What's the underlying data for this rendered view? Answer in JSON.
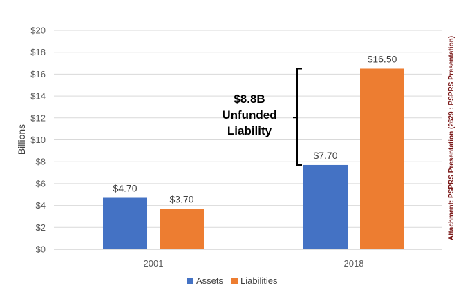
{
  "chart_data": {
    "type": "bar",
    "title": "",
    "xlabel": "",
    "ylabel": "Billions",
    "ylim": [
      0,
      20
    ],
    "y_ticks": [
      0,
      2,
      4,
      6,
      8,
      10,
      12,
      14,
      16,
      18,
      20
    ],
    "y_tick_labels": [
      "$0",
      "$2",
      "$4",
      "$6",
      "$8",
      "$10",
      "$12",
      "$14",
      "$16",
      "$18",
      "$20"
    ],
    "categories": [
      "2001",
      "2018"
    ],
    "series": [
      {
        "name": "Assets",
        "values": [
          4.7,
          7.7
        ],
        "labels": [
          "$4.70",
          "$7.70"
        ]
      },
      {
        "name": "Liabilities",
        "values": [
          3.7,
          16.5
        ],
        "labels": [
          "$3.70",
          "$16.50"
        ]
      }
    ],
    "grid": true,
    "legend_position": "bottom",
    "annotation": {
      "lines": [
        "$8.8B",
        "Unfunded",
        "Liability"
      ],
      "bracket_from": 7.7,
      "bracket_to": 16.5,
      "category": "2018"
    }
  },
  "colors": {
    "assets": "#4472c4",
    "liabilities": "#ed7d31",
    "grid": "#d9d9d9",
    "axis": "#bfbfbf"
  },
  "side_note": "Attachment: PSPRS Presentation  (2629 : PSPRS Presentation)"
}
